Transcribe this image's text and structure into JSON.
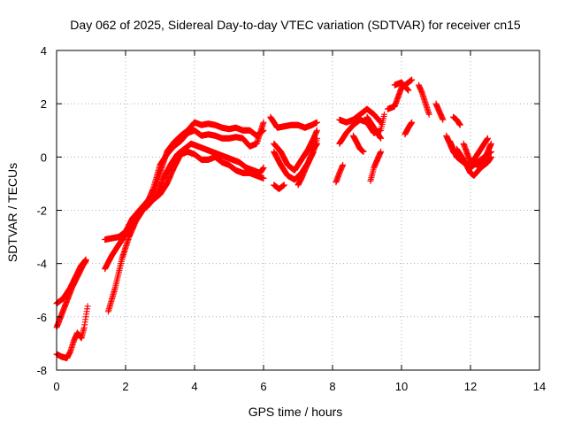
{
  "chart_data": {
    "type": "scatter",
    "title": "Day 062 of 2025, Sidereal Day-to-day VTEC variation (SDTVAR) for receiver cn15",
    "xlabel": "GPS time / hours",
    "ylabel": "SDTVAR / TECUs",
    "xlim": [
      0,
      14
    ],
    "ylim": [
      -8,
      4
    ],
    "xticks": [
      0,
      2,
      4,
      6,
      8,
      10,
      12,
      14
    ],
    "yticks": [
      -8,
      -6,
      -4,
      -2,
      0,
      2,
      4
    ],
    "grid": true,
    "marker": "+",
    "color": "#ff0000",
    "series": [
      {
        "tracks": [
          [
            [
              0.0,
              -5.5
            ],
            [
              0.2,
              -5.3
            ],
            [
              0.4,
              -4.9
            ],
            [
              0.55,
              -4.5
            ],
            [
              0.7,
              -4.1
            ],
            [
              0.85,
              -3.85
            ]
          ],
          [
            [
              0.0,
              -6.4
            ],
            [
              0.15,
              -5.9
            ],
            [
              0.3,
              -5.4
            ],
            [
              0.45,
              -4.9
            ],
            [
              0.6,
              -4.5
            ],
            [
              0.75,
              -4.1
            ],
            [
              0.85,
              -3.9
            ]
          ],
          [
            [
              0.0,
              -7.4
            ],
            [
              0.15,
              -7.5
            ],
            [
              0.3,
              -7.55
            ],
            [
              0.4,
              -7.3
            ],
            [
              0.5,
              -6.9
            ],
            [
              0.6,
              -6.6
            ],
            [
              0.72,
              -6.8
            ],
            [
              0.8,
              -6.4
            ],
            [
              0.9,
              -5.6
            ]
          ],
          [
            [
              1.4,
              -3.1
            ],
            [
              1.6,
              -3.05
            ],
            [
              1.8,
              -3.0
            ],
            [
              2.0,
              -2.8
            ],
            [
              2.2,
              -2.3
            ],
            [
              2.4,
              -2.0
            ],
            [
              2.6,
              -1.7
            ],
            [
              2.8,
              -1.4
            ],
            [
              3.0,
              -0.6
            ],
            [
              3.2,
              0.2
            ],
            [
              3.4,
              0.55
            ],
            [
              3.6,
              0.8
            ],
            [
              3.8,
              1.0
            ],
            [
              4.0,
              1.3
            ],
            [
              4.2,
              1.2
            ],
            [
              4.4,
              1.25
            ],
            [
              4.6,
              1.2
            ],
            [
              4.8,
              1.1
            ],
            [
              5.0,
              1.05
            ],
            [
              5.2,
              1.1
            ],
            [
              5.4,
              1.0
            ],
            [
              5.6,
              1.0
            ],
            [
              5.8,
              0.8
            ],
            [
              6.0,
              1.0
            ]
          ],
          [
            [
              1.4,
              -4.2
            ],
            [
              1.6,
              -3.7
            ],
            [
              1.8,
              -3.3
            ],
            [
              2.0,
              -2.9
            ],
            [
              2.2,
              -2.5
            ],
            [
              2.4,
              -2.1
            ],
            [
              2.6,
              -1.8
            ],
            [
              2.8,
              -1.2
            ],
            [
              3.0,
              -0.3
            ],
            [
              3.2,
              0.1
            ],
            [
              3.4,
              0.4
            ],
            [
              3.6,
              0.6
            ],
            [
              3.8,
              0.9
            ],
            [
              4.0,
              1.0
            ],
            [
              4.2,
              0.8
            ],
            [
              4.4,
              0.85
            ],
            [
              4.6,
              0.8
            ],
            [
              4.8,
              0.7
            ],
            [
              5.0,
              0.7
            ],
            [
              5.2,
              0.75
            ],
            [
              5.4,
              0.7
            ],
            [
              5.6,
              0.4
            ],
            [
              5.8,
              0.5
            ],
            [
              6.0,
              1.3
            ]
          ],
          [
            [
              1.5,
              -5.8
            ],
            [
              1.7,
              -4.9
            ],
            [
              1.9,
              -3.8
            ],
            [
              2.1,
              -3.0
            ],
            [
              2.3,
              -2.4
            ],
            [
              2.5,
              -2.0
            ],
            [
              2.7,
              -1.7
            ],
            [
              2.9,
              -1.5
            ],
            [
              3.1,
              -0.8
            ],
            [
              3.3,
              -0.3
            ],
            [
              3.5,
              0.1
            ],
            [
              3.7,
              0.3
            ],
            [
              3.9,
              0.5
            ],
            [
              4.1,
              0.4
            ],
            [
              4.3,
              0.3
            ],
            [
              4.5,
              0.2
            ],
            [
              4.7,
              0.1
            ],
            [
              4.9,
              0.0
            ],
            [
              5.1,
              -0.1
            ],
            [
              5.3,
              -0.2
            ],
            [
              5.5,
              -0.4
            ],
            [
              5.7,
              -0.5
            ],
            [
              5.9,
              -0.6
            ],
            [
              6.0,
              -0.4
            ]
          ],
          [
            [
              2.6,
              -1.9
            ],
            [
              2.8,
              -1.6
            ],
            [
              3.0,
              -1.4
            ],
            [
              3.2,
              -1.0
            ],
            [
              3.4,
              -0.4
            ],
            [
              3.6,
              0.1
            ],
            [
              3.8,
              0.2
            ],
            [
              4.0,
              0.1
            ],
            [
              4.2,
              -0.1
            ],
            [
              4.4,
              -0.1
            ],
            [
              4.6,
              0.0
            ],
            [
              4.8,
              -0.2
            ],
            [
              5.0,
              -0.3
            ],
            [
              5.2,
              -0.5
            ],
            [
              5.4,
              -0.6
            ],
            [
              5.6,
              -0.6
            ],
            [
              5.8,
              -0.7
            ],
            [
              6.0,
              -0.8
            ]
          ],
          [
            [
              6.2,
              1.5
            ],
            [
              6.4,
              1.1
            ],
            [
              6.6,
              1.15
            ],
            [
              6.8,
              1.2
            ],
            [
              7.0,
              1.2
            ],
            [
              7.2,
              1.1
            ],
            [
              7.4,
              1.2
            ],
            [
              7.55,
              1.3
            ]
          ],
          [
            [
              6.3,
              0.2
            ],
            [
              6.5,
              -0.3
            ],
            [
              6.7,
              -0.7
            ],
            [
              6.9,
              -0.85
            ],
            [
              7.1,
              -0.6
            ],
            [
              7.3,
              -0.2
            ],
            [
              7.45,
              0.2
            ],
            [
              7.55,
              0.7
            ]
          ],
          [
            [
              6.3,
              0.5
            ],
            [
              6.5,
              0.2
            ],
            [
              6.7,
              -0.3
            ],
            [
              6.9,
              -0.5
            ],
            [
              7.1,
              -0.1
            ],
            [
              7.3,
              0.3
            ],
            [
              7.45,
              0.7
            ],
            [
              7.55,
              1.0
            ]
          ],
          [
            [
              6.3,
              -1.05
            ],
            [
              6.45,
              -1.2
            ],
            [
              6.6,
              -1.05
            ]
          ],
          [
            [
              7.0,
              -1.05
            ],
            [
              7.1,
              -0.8
            ],
            [
              7.2,
              -0.5
            ],
            [
              7.3,
              -0.2
            ],
            [
              7.4,
              0.2
            ],
            [
              7.55,
              0.5
            ]
          ],
          [
            [
              8.1,
              -0.95
            ],
            [
              8.2,
              -0.6
            ],
            [
              8.3,
              -0.3
            ]
          ],
          [
            [
              8.2,
              1.4
            ],
            [
              8.4,
              1.3
            ],
            [
              8.6,
              1.4
            ],
            [
              8.8,
              1.6
            ],
            [
              9.0,
              1.8
            ],
            [
              9.2,
              1.6
            ],
            [
              9.4,
              1.3
            ]
          ],
          [
            [
              8.2,
              0.5
            ],
            [
              8.4,
              0.9
            ],
            [
              8.6,
              1.2
            ],
            [
              8.8,
              1.4
            ],
            [
              9.0,
              1.3
            ],
            [
              9.2,
              0.9
            ],
            [
              9.4,
              1.0
            ],
            [
              9.5,
              1.6
            ]
          ],
          [
            [
              8.6,
              0.8
            ],
            [
              8.8,
              0.3
            ],
            [
              8.9,
              0.2
            ]
          ],
          [
            [
              9.0,
              1.5
            ],
            [
              9.15,
              1.2
            ],
            [
              9.3,
              0.9
            ],
            [
              9.4,
              0.7
            ]
          ],
          [
            [
              9.1,
              -0.9
            ],
            [
              9.2,
              -0.4
            ],
            [
              9.3,
              -0.1
            ],
            [
              9.4,
              0.2
            ]
          ],
          [
            [
              9.6,
              1.8
            ],
            [
              9.8,
              1.9
            ],
            [
              10.0,
              2.6
            ],
            [
              10.2,
              2.8
            ],
            [
              10.3,
              2.9
            ]
          ],
          [
            [
              9.8,
              2.7
            ],
            [
              10.0,
              2.8
            ],
            [
              10.2,
              2.5
            ]
          ],
          [
            [
              10.1,
              0.85
            ],
            [
              10.2,
              1.1
            ],
            [
              10.3,
              1.3
            ]
          ],
          [
            [
              10.5,
              2.7
            ],
            [
              10.6,
              2.4
            ],
            [
              10.7,
              2.0
            ],
            [
              10.8,
              1.6
            ]
          ],
          [
            [
              11.0,
              2.0
            ],
            [
              11.1,
              1.7
            ],
            [
              11.2,
              1.4
            ]
          ],
          [
            [
              11.5,
              1.5
            ],
            [
              11.6,
              1.4
            ],
            [
              11.7,
              1.2
            ]
          ],
          [
            [
              11.3,
              0.8
            ],
            [
              11.5,
              0.2
            ],
            [
              11.7,
              -0.1
            ],
            [
              11.9,
              -0.3
            ],
            [
              12.1,
              -0.1
            ],
            [
              12.3,
              0.3
            ],
            [
              12.5,
              0.7
            ]
          ],
          [
            [
              11.4,
              0.6
            ],
            [
              11.6,
              0.0
            ],
            [
              11.8,
              -0.2
            ],
            [
              12.0,
              -0.4
            ],
            [
              12.2,
              -0.2
            ],
            [
              12.4,
              0.0
            ],
            [
              12.6,
              0.2
            ]
          ],
          [
            [
              11.6,
              0.3
            ],
            [
              11.8,
              -0.1
            ],
            [
              12.0,
              -0.6
            ],
            [
              12.1,
              -0.7
            ],
            [
              12.3,
              -0.4
            ],
            [
              12.5,
              -0.2
            ],
            [
              12.6,
              0.0
            ]
          ],
          [
            [
              11.8,
              0.5
            ],
            [
              12.0,
              -0.2
            ],
            [
              12.2,
              -0.3
            ],
            [
              12.4,
              -0.1
            ],
            [
              12.6,
              0.5
            ]
          ]
        ]
      }
    ]
  }
}
